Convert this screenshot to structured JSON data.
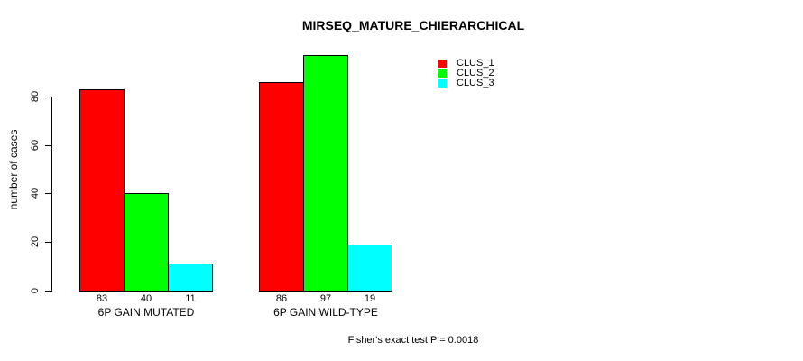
{
  "chart_data": {
    "type": "bar",
    "title": "MIRSEQ_MATURE_CHIERARCHICAL",
    "ylabel": "number of cases",
    "xlabel": "",
    "categories": [
      "6P GAIN MUTATED",
      "6P GAIN WILD-TYPE"
    ],
    "series": [
      {
        "name": "CLUS_1",
        "color": "#FF0000",
        "values": [
          83,
          86
        ]
      },
      {
        "name": "CLUS_2",
        "color": "#00FF00",
        "values": [
          40,
          97
        ]
      },
      {
        "name": "CLUS_3",
        "color": "#00FFFF",
        "values": [
          11,
          19
        ]
      }
    ],
    "yticks": [
      0,
      20,
      40,
      60,
      80
    ],
    "ylim": [
      0,
      97
    ],
    "grid": false,
    "legend_position": "top-right",
    "bar_value_labels_shown": true,
    "annotation": "Fisher's exact test P = 0.0018"
  },
  "colors": {
    "background": "#FFFFFF",
    "axis": "#000000",
    "text": "#000000",
    "bar_border": "#000000"
  }
}
